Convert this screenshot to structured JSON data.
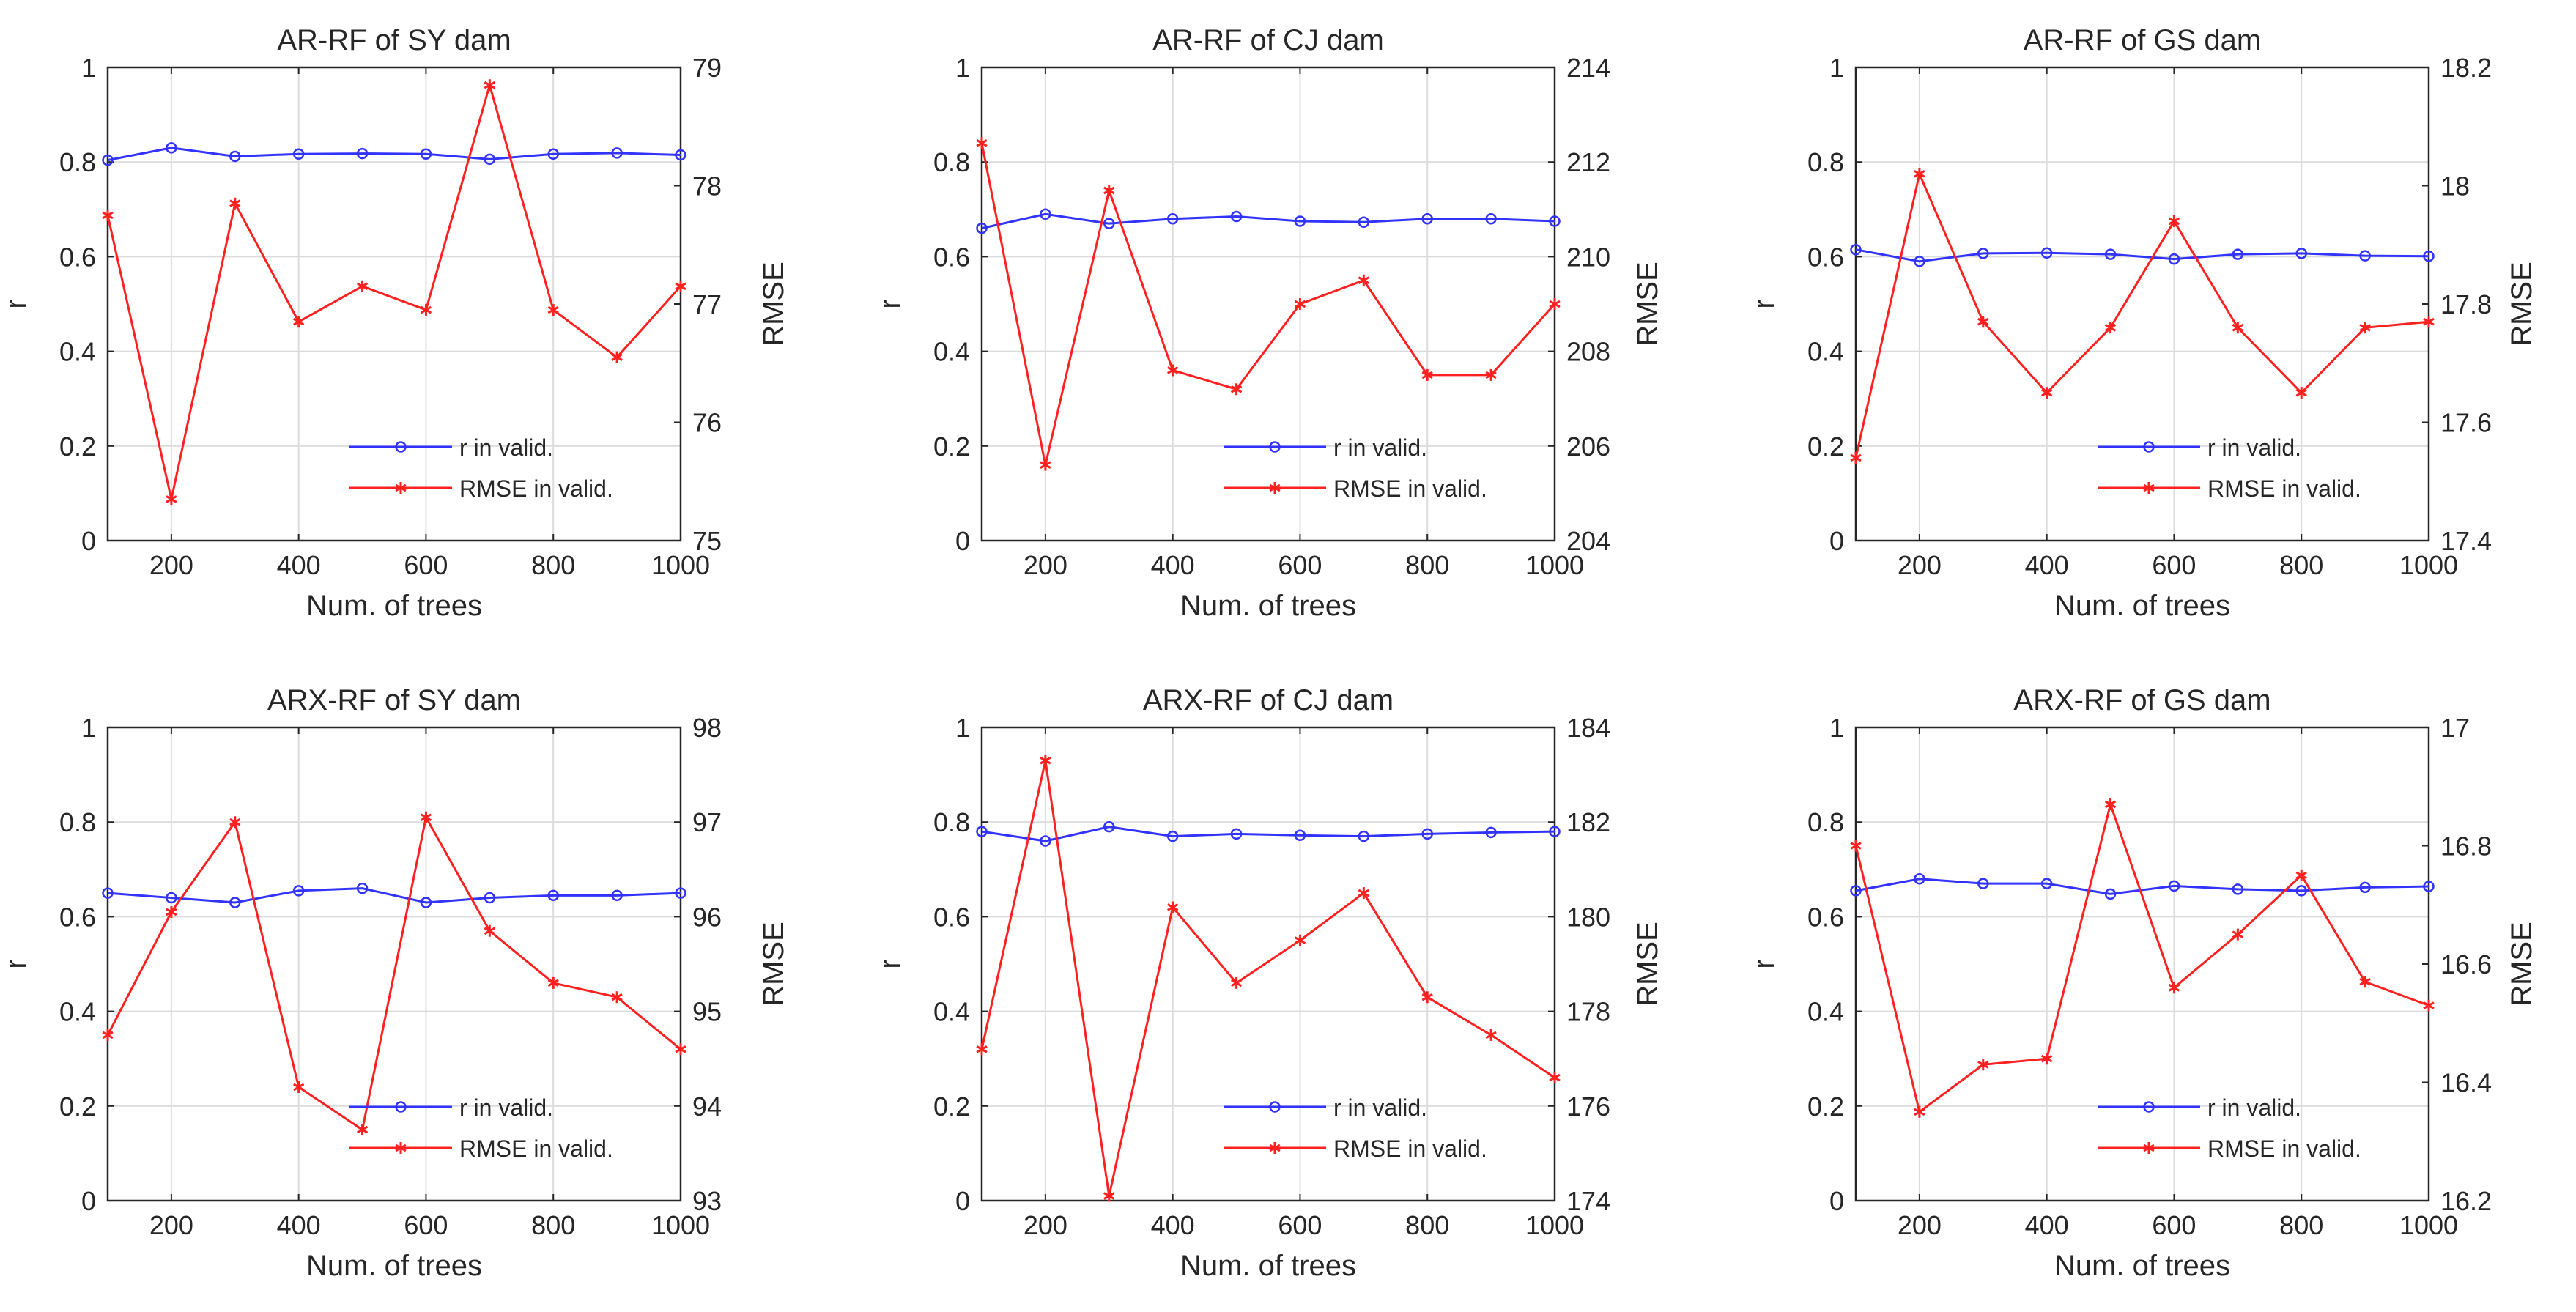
{
  "figure": {
    "xlabel": "Num. of trees",
    "ylabel_left": "r",
    "ylabel_right": "RMSE",
    "legend": [
      "r in valid.",
      "RMSE in valid."
    ],
    "colors": {
      "r": "#3333ff",
      "rmse": "#ff2020",
      "grid": "#dcdcdc",
      "axis": "#262626"
    }
  },
  "chart_data": [
    {
      "type": "line",
      "title": "AR-RF of SY dam",
      "x": [
        100,
        200,
        300,
        400,
        500,
        600,
        700,
        800,
        900,
        1000
      ],
      "xlim": [
        100,
        1000
      ],
      "xticks": [
        200,
        400,
        600,
        800,
        1000
      ],
      "ylim_left": [
        0,
        1
      ],
      "yticks_left": [
        "0",
        "0.2",
        "0.4",
        "0.6",
        "0.8",
        "1"
      ],
      "ylim_right": [
        75,
        79
      ],
      "yticks_right": [
        "75",
        "76",
        "77",
        "78",
        "79"
      ],
      "series": [
        {
          "name": "r in valid.",
          "axis": "left",
          "marker": "circle",
          "values": [
            0.804,
            0.83,
            0.812,
            0.817,
            0.818,
            0.817,
            0.806,
            0.817,
            0.819,
            0.815
          ]
        },
        {
          "name": "RMSE in valid.",
          "axis": "right",
          "marker": "star",
          "values": [
            77.75,
            75.35,
            77.85,
            76.85,
            77.15,
            76.95,
            78.85,
            76.95,
            76.55,
            77.15
          ]
        }
      ]
    },
    {
      "type": "line",
      "title": "AR-RF of CJ dam",
      "x": [
        100,
        200,
        300,
        400,
        500,
        600,
        700,
        800,
        900,
        1000
      ],
      "xlim": [
        100,
        1000
      ],
      "xticks": [
        200,
        400,
        600,
        800,
        1000
      ],
      "ylim_left": [
        0,
        1
      ],
      "yticks_left": [
        "0",
        "0.2",
        "0.4",
        "0.6",
        "0.8",
        "1"
      ],
      "ylim_right": [
        204,
        214
      ],
      "yticks_right": [
        "204",
        "206",
        "208",
        "210",
        "212",
        "214"
      ],
      "series": [
        {
          "name": "r in valid.",
          "axis": "left",
          "marker": "circle",
          "values": [
            0.66,
            0.69,
            0.67,
            0.68,
            0.685,
            0.675,
            0.673,
            0.68,
            0.68,
            0.675
          ]
        },
        {
          "name": "RMSE in valid.",
          "axis": "right",
          "marker": "star",
          "values": [
            212.4,
            205.6,
            211.4,
            207.6,
            207.2,
            209.0,
            209.5,
            207.5,
            207.5,
            209.0
          ]
        }
      ]
    },
    {
      "type": "line",
      "title": "AR-RF of GS dam",
      "x": [
        100,
        200,
        300,
        400,
        500,
        600,
        700,
        800,
        900,
        1000
      ],
      "xlim": [
        100,
        1000
      ],
      "xticks": [
        200,
        400,
        600,
        800,
        1000
      ],
      "ylim_left": [
        0,
        1
      ],
      "yticks_left": [
        "0",
        "0.2",
        "0.4",
        "0.6",
        "0.8",
        "1"
      ],
      "ylim_right": [
        17.4,
        18.2
      ],
      "yticks_right": [
        "17.4",
        "17.6",
        "17.8",
        "18",
        "18.2"
      ],
      "series": [
        {
          "name": "r in valid.",
          "axis": "left",
          "marker": "circle",
          "values": [
            0.615,
            0.59,
            0.607,
            0.608,
            0.605,
            0.595,
            0.605,
            0.607,
            0.602,
            0.601
          ]
        },
        {
          "name": "RMSE in valid.",
          "axis": "right",
          "marker": "star",
          "values": [
            17.54,
            18.02,
            17.77,
            17.65,
            17.76,
            17.94,
            17.76,
            17.65,
            17.76,
            17.77
          ]
        }
      ]
    },
    {
      "type": "line",
      "title": "ARX-RF of SY dam",
      "x": [
        100,
        200,
        300,
        400,
        500,
        600,
        700,
        800,
        900,
        1000
      ],
      "xlim": [
        100,
        1000
      ],
      "xticks": [
        200,
        400,
        600,
        800,
        1000
      ],
      "ylim_left": [
        0,
        1
      ],
      "yticks_left": [
        "0",
        "0.2",
        "0.4",
        "0.6",
        "0.8",
        "1"
      ],
      "ylim_right": [
        93,
        98
      ],
      "yticks_right": [
        "93",
        "94",
        "95",
        "96",
        "97",
        "98"
      ],
      "series": [
        {
          "name": "r in valid.",
          "axis": "left",
          "marker": "circle",
          "values": [
            0.65,
            0.64,
            0.63,
            0.655,
            0.66,
            0.63,
            0.64,
            0.645,
            0.645,
            0.65
          ]
        },
        {
          "name": "RMSE in valid.",
          "axis": "right",
          "marker": "star",
          "values": [
            94.75,
            96.05,
            97.0,
            94.2,
            93.75,
            97.05,
            95.85,
            95.3,
            95.15,
            94.6
          ]
        }
      ]
    },
    {
      "type": "line",
      "title": "ARX-RF of CJ dam",
      "x": [
        100,
        200,
        300,
        400,
        500,
        600,
        700,
        800,
        900,
        1000
      ],
      "xlim": [
        100,
        1000
      ],
      "xticks": [
        200,
        400,
        600,
        800,
        1000
      ],
      "ylim_left": [
        0,
        1
      ],
      "yticks_left": [
        "0",
        "0.2",
        "0.4",
        "0.6",
        "0.8",
        "1"
      ],
      "ylim_right": [
        174,
        184
      ],
      "yticks_right": [
        "174",
        "176",
        "178",
        "180",
        "182",
        "184"
      ],
      "series": [
        {
          "name": "r in valid.",
          "axis": "left",
          "marker": "circle",
          "values": [
            0.78,
            0.76,
            0.79,
            0.77,
            0.775,
            0.772,
            0.77,
            0.775,
            0.778,
            0.78
          ]
        },
        {
          "name": "RMSE in valid.",
          "axis": "right",
          "marker": "star",
          "values": [
            177.2,
            183.3,
            174.1,
            180.2,
            178.6,
            179.5,
            180.5,
            178.3,
            177.5,
            176.6
          ]
        }
      ]
    },
    {
      "type": "line",
      "title": "ARX-RF of GS dam",
      "x": [
        100,
        200,
        300,
        400,
        500,
        600,
        700,
        800,
        900,
        1000
      ],
      "xlim": [
        100,
        1000
      ],
      "xticks": [
        200,
        400,
        600,
        800,
        1000
      ],
      "ylim_left": [
        0,
        1
      ],
      "yticks_left": [
        "0",
        "0.2",
        "0.4",
        "0.6",
        "0.8",
        "1"
      ],
      "ylim_right": [
        16.2,
        17
      ],
      "yticks_right": [
        "16.2",
        "16.4",
        "16.6",
        "16.8",
        "17"
      ],
      "series": [
        {
          "name": "r in valid.",
          "axis": "left",
          "marker": "circle",
          "values": [
            0.655,
            0.68,
            0.67,
            0.67,
            0.648,
            0.665,
            0.658,
            0.655,
            0.662,
            0.664
          ]
        },
        {
          "name": "RMSE in valid.",
          "axis": "right",
          "marker": "star",
          "values": [
            16.8,
            16.35,
            16.43,
            16.44,
            16.87,
            16.56,
            16.65,
            16.75,
            16.57,
            16.53
          ]
        }
      ]
    }
  ]
}
